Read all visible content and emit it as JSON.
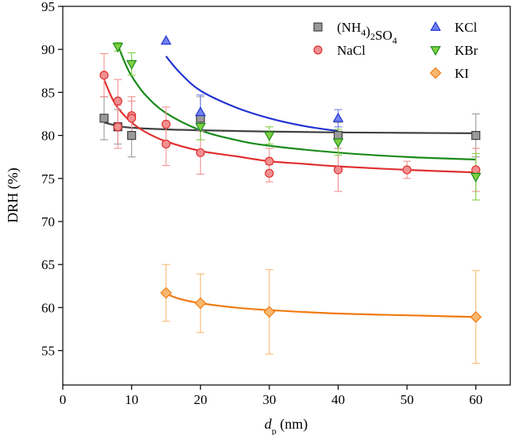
{
  "chart_data": {
    "type": "scatter",
    "title": "",
    "xlabel": {
      "main": "d",
      "sub": "p",
      "rest": " (nm)"
    },
    "ylabel": "DRH (%)",
    "xlim": [
      0,
      65
    ],
    "ylim": [
      51,
      95
    ],
    "xticks": [
      0,
      10,
      20,
      30,
      40,
      50,
      60
    ],
    "yticks": [
      55,
      60,
      65,
      70,
      75,
      80,
      85,
      90,
      95
    ],
    "grid": false,
    "legend_position": "top-right",
    "series": [
      {
        "name": "(NH4)2SO4",
        "label": {
          "base": "(NH",
          "s1": "4",
          "mid": ")",
          "s2": "2",
          "rest": "SO",
          "s3": "4"
        },
        "marker": "square",
        "color": "#404040",
        "fill": "#9a9a9a",
        "points": [
          {
            "x": 6,
            "y": 82.0,
            "err": 2.5
          },
          {
            "x": 8,
            "y": 81.0,
            "err": 2.0
          },
          {
            "x": 10,
            "y": 80.0,
            "err": 2.5
          },
          {
            "x": 20,
            "y": 82.0,
            "err": 2.5
          },
          {
            "x": 40,
            "y": 80.0,
            "err": 1.5
          },
          {
            "x": 60,
            "y": 80.0,
            "err": 2.5
          }
        ],
        "fit": [
          [
            6,
            81.5
          ],
          [
            8,
            81.1
          ],
          [
            10,
            80.9
          ],
          [
            15,
            80.7
          ],
          [
            20,
            80.6
          ],
          [
            30,
            80.45
          ],
          [
            40,
            80.35
          ],
          [
            50,
            80.3
          ],
          [
            60,
            80.25
          ]
        ]
      },
      {
        "name": "NaCl",
        "label": {
          "base": "NaCl"
        },
        "marker": "circle",
        "color": "#e03030",
        "fill": "#f09090",
        "points": [
          {
            "x": 6,
            "y": 87.0,
            "err": 2.5
          },
          {
            "x": 8,
            "y": 84.0,
            "err": 2.5
          },
          {
            "x": 8,
            "y": 81.0,
            "err": 2.5
          },
          {
            "x": 10,
            "y": 82.3,
            "err": 2.2
          },
          {
            "x": 10,
            "y": 82.0,
            "err": 2.0
          },
          {
            "x": 15,
            "y": 81.3,
            "err": 2.0
          },
          {
            "x": 15,
            "y": 79.0,
            "err": 2.5
          },
          {
            "x": 20,
            "y": 78.0,
            "err": 2.5
          },
          {
            "x": 30,
            "y": 77.0,
            "err": 1.5
          },
          {
            "x": 30,
            "y": 75.6,
            "err": 1.0
          },
          {
            "x": 40,
            "y": 76.0,
            "err": 2.5
          },
          {
            "x": 50,
            "y": 76.0,
            "err": 1.0
          },
          {
            "x": 60,
            "y": 76.0,
            "err": 2.5
          }
        ],
        "fit": [
          [
            6,
            86.5
          ],
          [
            7,
            84.6
          ],
          [
            8,
            83.2
          ],
          [
            10,
            81.5
          ],
          [
            12,
            80.4
          ],
          [
            15,
            79.3
          ],
          [
            20,
            78.2
          ],
          [
            25,
            77.6
          ],
          [
            30,
            77.0
          ],
          [
            35,
            76.7
          ],
          [
            40,
            76.4
          ],
          [
            50,
            76.0
          ],
          [
            60,
            75.7
          ]
        ]
      },
      {
        "name": "KCl",
        "label": {
          "base": "KCl"
        },
        "marker": "triangle-up",
        "color": "#2233d0",
        "fill": "#6f82ef",
        "points": [
          {
            "x": 15,
            "y": 91.0,
            "err": 0
          },
          {
            "x": 20,
            "y": 82.7,
            "err": 2.0
          },
          {
            "x": 40,
            "y": 82.0,
            "err": 1.0
          }
        ],
        "fit": [
          [
            15,
            89.2
          ],
          [
            17,
            87.3
          ],
          [
            20,
            85.2
          ],
          [
            25,
            83.3
          ],
          [
            30,
            82.0
          ],
          [
            35,
            81.1
          ],
          [
            40,
            80.5
          ]
        ]
      },
      {
        "name": "KBr",
        "label": {
          "base": "KBr"
        },
        "marker": "triangle-down",
        "color": "#1a8a1a",
        "fill": "#7fd040",
        "points": [
          {
            "x": 8,
            "y": 90.3,
            "err": 0.5
          },
          {
            "x": 10,
            "y": 88.3,
            "err": 1.3
          },
          {
            "x": 20,
            "y": 81.0,
            "err": 1.5
          },
          {
            "x": 30,
            "y": 80.0,
            "err": 1.0
          },
          {
            "x": 40,
            "y": 79.2,
            "err": 1.5
          },
          {
            "x": 60,
            "y": 75.2,
            "err": 2.7
          }
        ],
        "fit": [
          [
            8,
            90.5
          ],
          [
            9,
            88.5
          ],
          [
            10,
            86.9
          ],
          [
            12,
            84.7
          ],
          [
            15,
            82.6
          ],
          [
            20,
            80.6
          ],
          [
            25,
            79.5
          ],
          [
            30,
            78.8
          ],
          [
            40,
            78.0
          ],
          [
            50,
            77.5
          ],
          [
            60,
            77.2
          ]
        ]
      },
      {
        "name": "KI",
        "label": {
          "base": "KI"
        },
        "marker": "diamond",
        "color": "#f07a10",
        "fill": "#f8b870",
        "points": [
          {
            "x": 15,
            "y": 61.7,
            "err": 3.3
          },
          {
            "x": 20,
            "y": 60.5,
            "err": 3.4
          },
          {
            "x": 30,
            "y": 59.5,
            "err": 4.9
          },
          {
            "x": 60,
            "y": 58.9,
            "err": 5.4
          }
        ],
        "fit": [
          [
            15,
            61.6
          ],
          [
            17,
            61.0
          ],
          [
            20,
            60.5
          ],
          [
            25,
            60.0
          ],
          [
            30,
            59.7
          ],
          [
            40,
            59.3
          ],
          [
            50,
            59.1
          ],
          [
            60,
            58.9
          ]
        ]
      }
    ]
  }
}
